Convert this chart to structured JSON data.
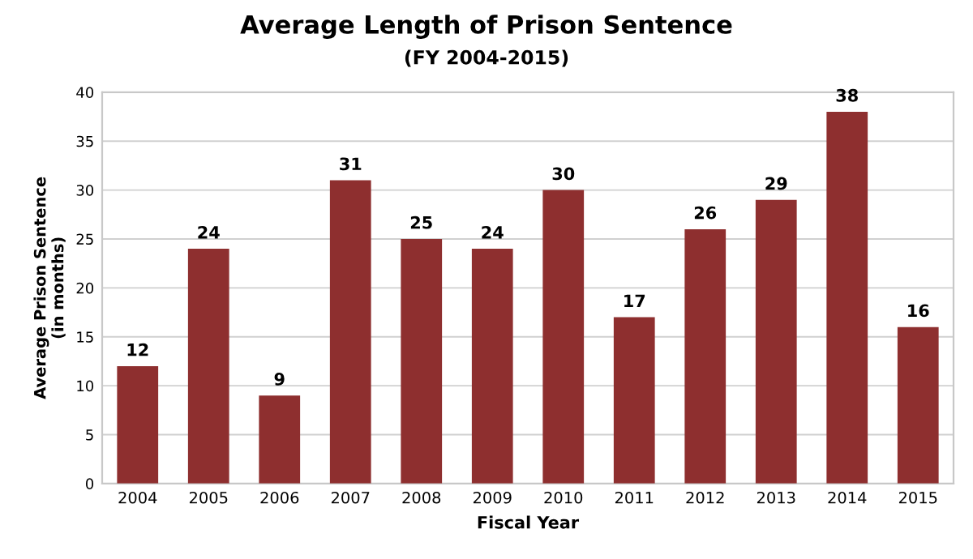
{
  "chart_data": {
    "type": "bar",
    "title": "Average Length of Prison Sentence",
    "subtitle": "(FY 2004-2015)",
    "xlabel": "Fiscal Year",
    "ylabel": "Average Prison Sentence\n(in months)",
    "categories": [
      "2004",
      "2005",
      "2006",
      "2007",
      "2008",
      "2009",
      "2010",
      "2011",
      "2012",
      "2013",
      "2014",
      "2015"
    ],
    "values": [
      12,
      24,
      9,
      31,
      25,
      24,
      30,
      17,
      26,
      29,
      38,
      16
    ],
    "color": "#8e2f2f",
    "ylim": [
      0,
      40
    ],
    "yticks": [
      0,
      5,
      10,
      15,
      20,
      25,
      30,
      35,
      40
    ],
    "grid": "y",
    "data_labels": true
  }
}
